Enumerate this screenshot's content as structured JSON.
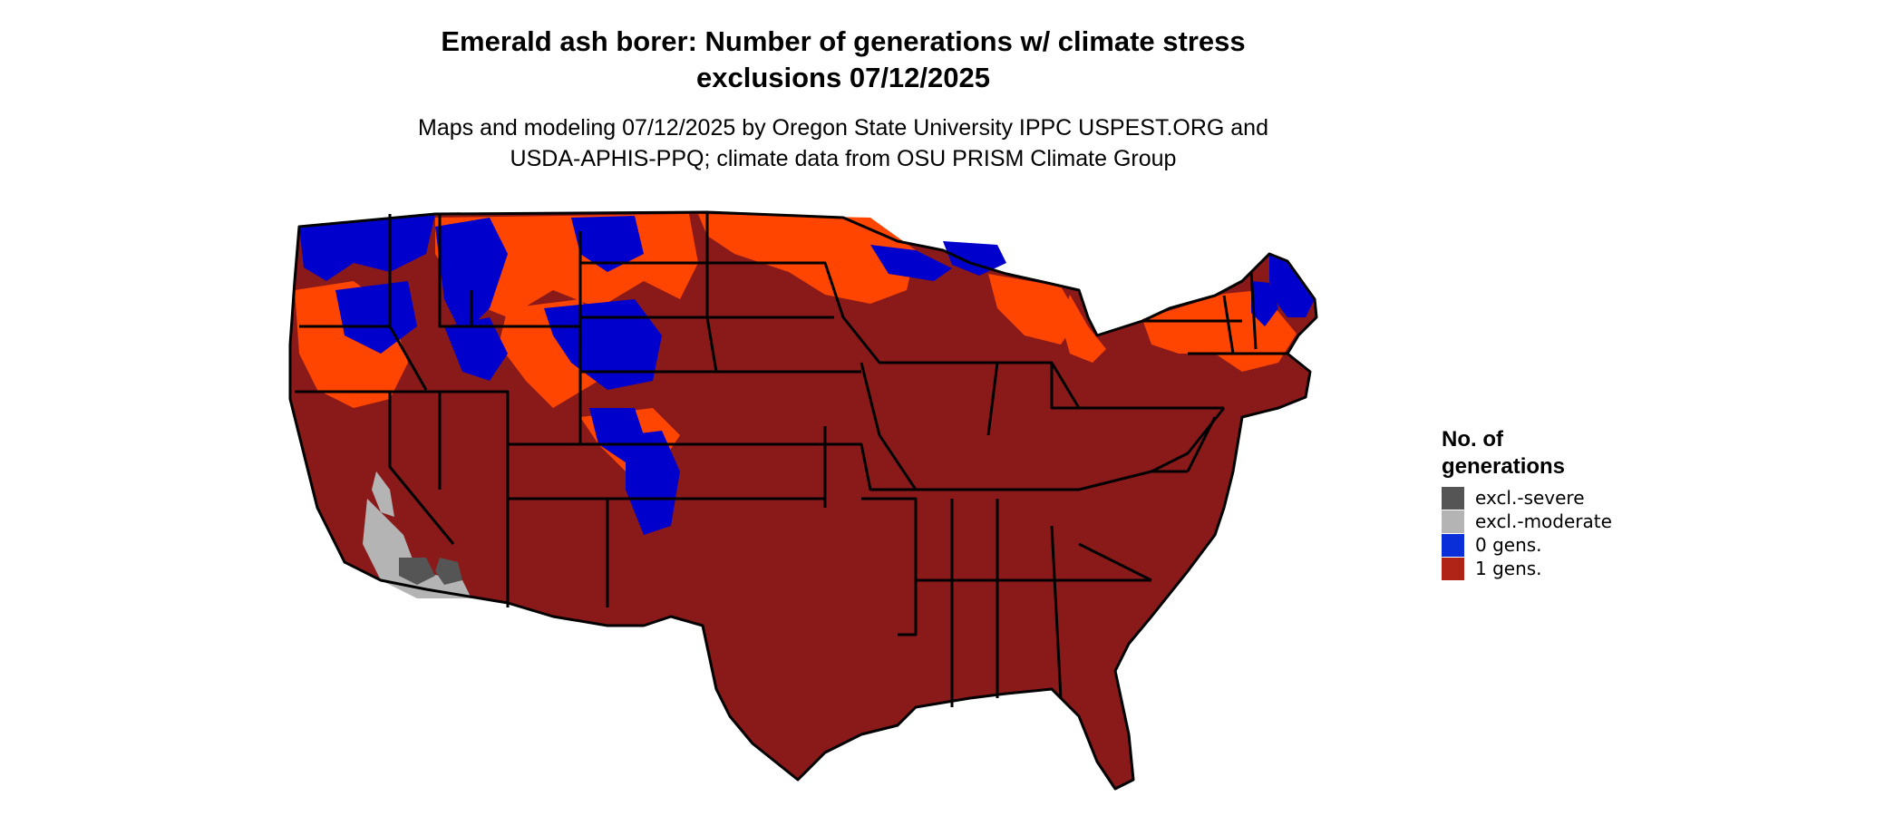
{
  "title_line1": "Emerald ash borer: Number of generations w/ climate stress",
  "title_line2": "exclusions 07/12/2025",
  "subtitle_line1": "Maps and modeling 07/12/2025 by Oregon State University IPPC USPEST.ORG and",
  "subtitle_line2": "USDA-APHIS-PPQ; climate data from OSU PRISM Climate Group",
  "legend": {
    "title_line1": "No. of",
    "title_line2": "generations",
    "items": [
      {
        "label": "excl.-severe",
        "color": "#555555"
      },
      {
        "label": "excl.-moderate",
        "color": "#b4b4b4"
      },
      {
        "label": "0 gens.",
        "color": "#0a2fd8"
      },
      {
        "label": "1 gens.",
        "color": "#b02418"
      }
    ]
  },
  "map_colors": {
    "one_gen": "#8a1a1a",
    "zero_gen": "#0000cc",
    "transition": "#ff4500",
    "excl_severe": "#555555",
    "excl_moderate": "#b4b4b4",
    "border": "#000000"
  }
}
